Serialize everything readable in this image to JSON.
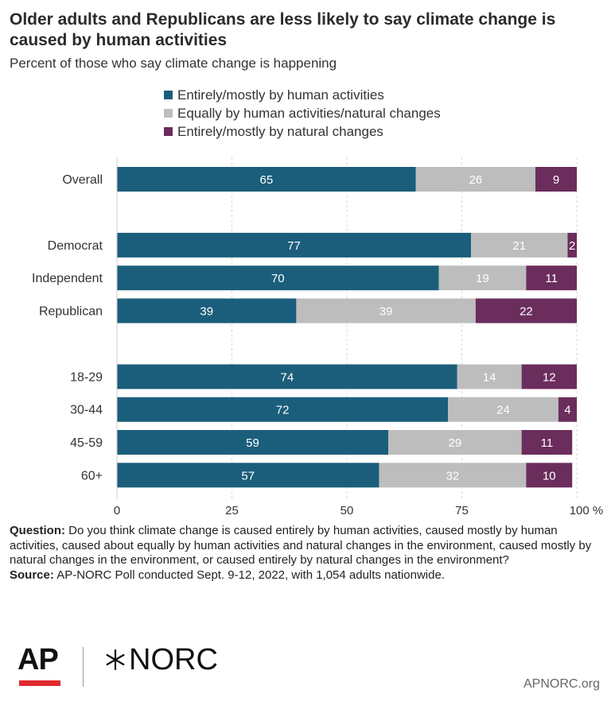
{
  "title": "Older adults and Republicans are less likely to say climate change is caused by human activities",
  "subtitle": "Percent of those who say climate change is happening",
  "legend": [
    {
      "label": "Entirely/mostly by human activities",
      "color": "#1b5e7b"
    },
    {
      "label": "Equally by human activities/natural changes",
      "color": "#bdbdbd"
    },
    {
      "label": "Entirely/mostly by natural changes",
      "color": "#6b2d5c"
    }
  ],
  "chart_data": {
    "type": "bar",
    "orientation": "horizontal",
    "stacked": true,
    "categories": [
      "Overall",
      "Democrat",
      "Independent",
      "Republican",
      "18-29",
      "30-44",
      "45-59",
      "60+"
    ],
    "groups": [
      [
        "Overall"
      ],
      [
        "Democrat",
        "Independent",
        "Republican"
      ],
      [
        "18-29",
        "30-44",
        "45-59",
        "60+"
      ]
    ],
    "series": [
      {
        "name": "Entirely/mostly by human activities",
        "color": "#1b5e7b",
        "values": [
          65,
          77,
          70,
          39,
          74,
          72,
          59,
          57
        ]
      },
      {
        "name": "Equally by human activities/natural changes",
        "color": "#bdbdbd",
        "values": [
          26,
          21,
          19,
          39,
          14,
          24,
          29,
          32
        ]
      },
      {
        "name": "Entirely/mostly by natural changes",
        "color": "#6b2d5c",
        "values": [
          9,
          2,
          11,
          22,
          12,
          4,
          11,
          10
        ]
      }
    ],
    "xlim": [
      0,
      100
    ],
    "xticks": [
      0,
      25,
      50,
      75,
      100
    ],
    "xtick_labels": [
      "0",
      "25",
      "50",
      "75",
      "100 %"
    ],
    "grid": true,
    "legend_position": "top"
  },
  "footnote": {
    "question_label": "Question:",
    "question_text": "Do you think climate change is caused entirely by human activities, caused mostly by human activities, caused about equally by human activities and natural changes in the environment, caused mostly by natural changes in the environment, or caused entirely by natural changes in the environment?",
    "source_label": "Source:",
    "source_text": "AP-NORC Poll conducted Sept. 9-12, 2022, with 1,054 adults nationwide."
  },
  "logos": {
    "ap": "AP",
    "norc": "NORC"
  },
  "site": "APNORC.org"
}
